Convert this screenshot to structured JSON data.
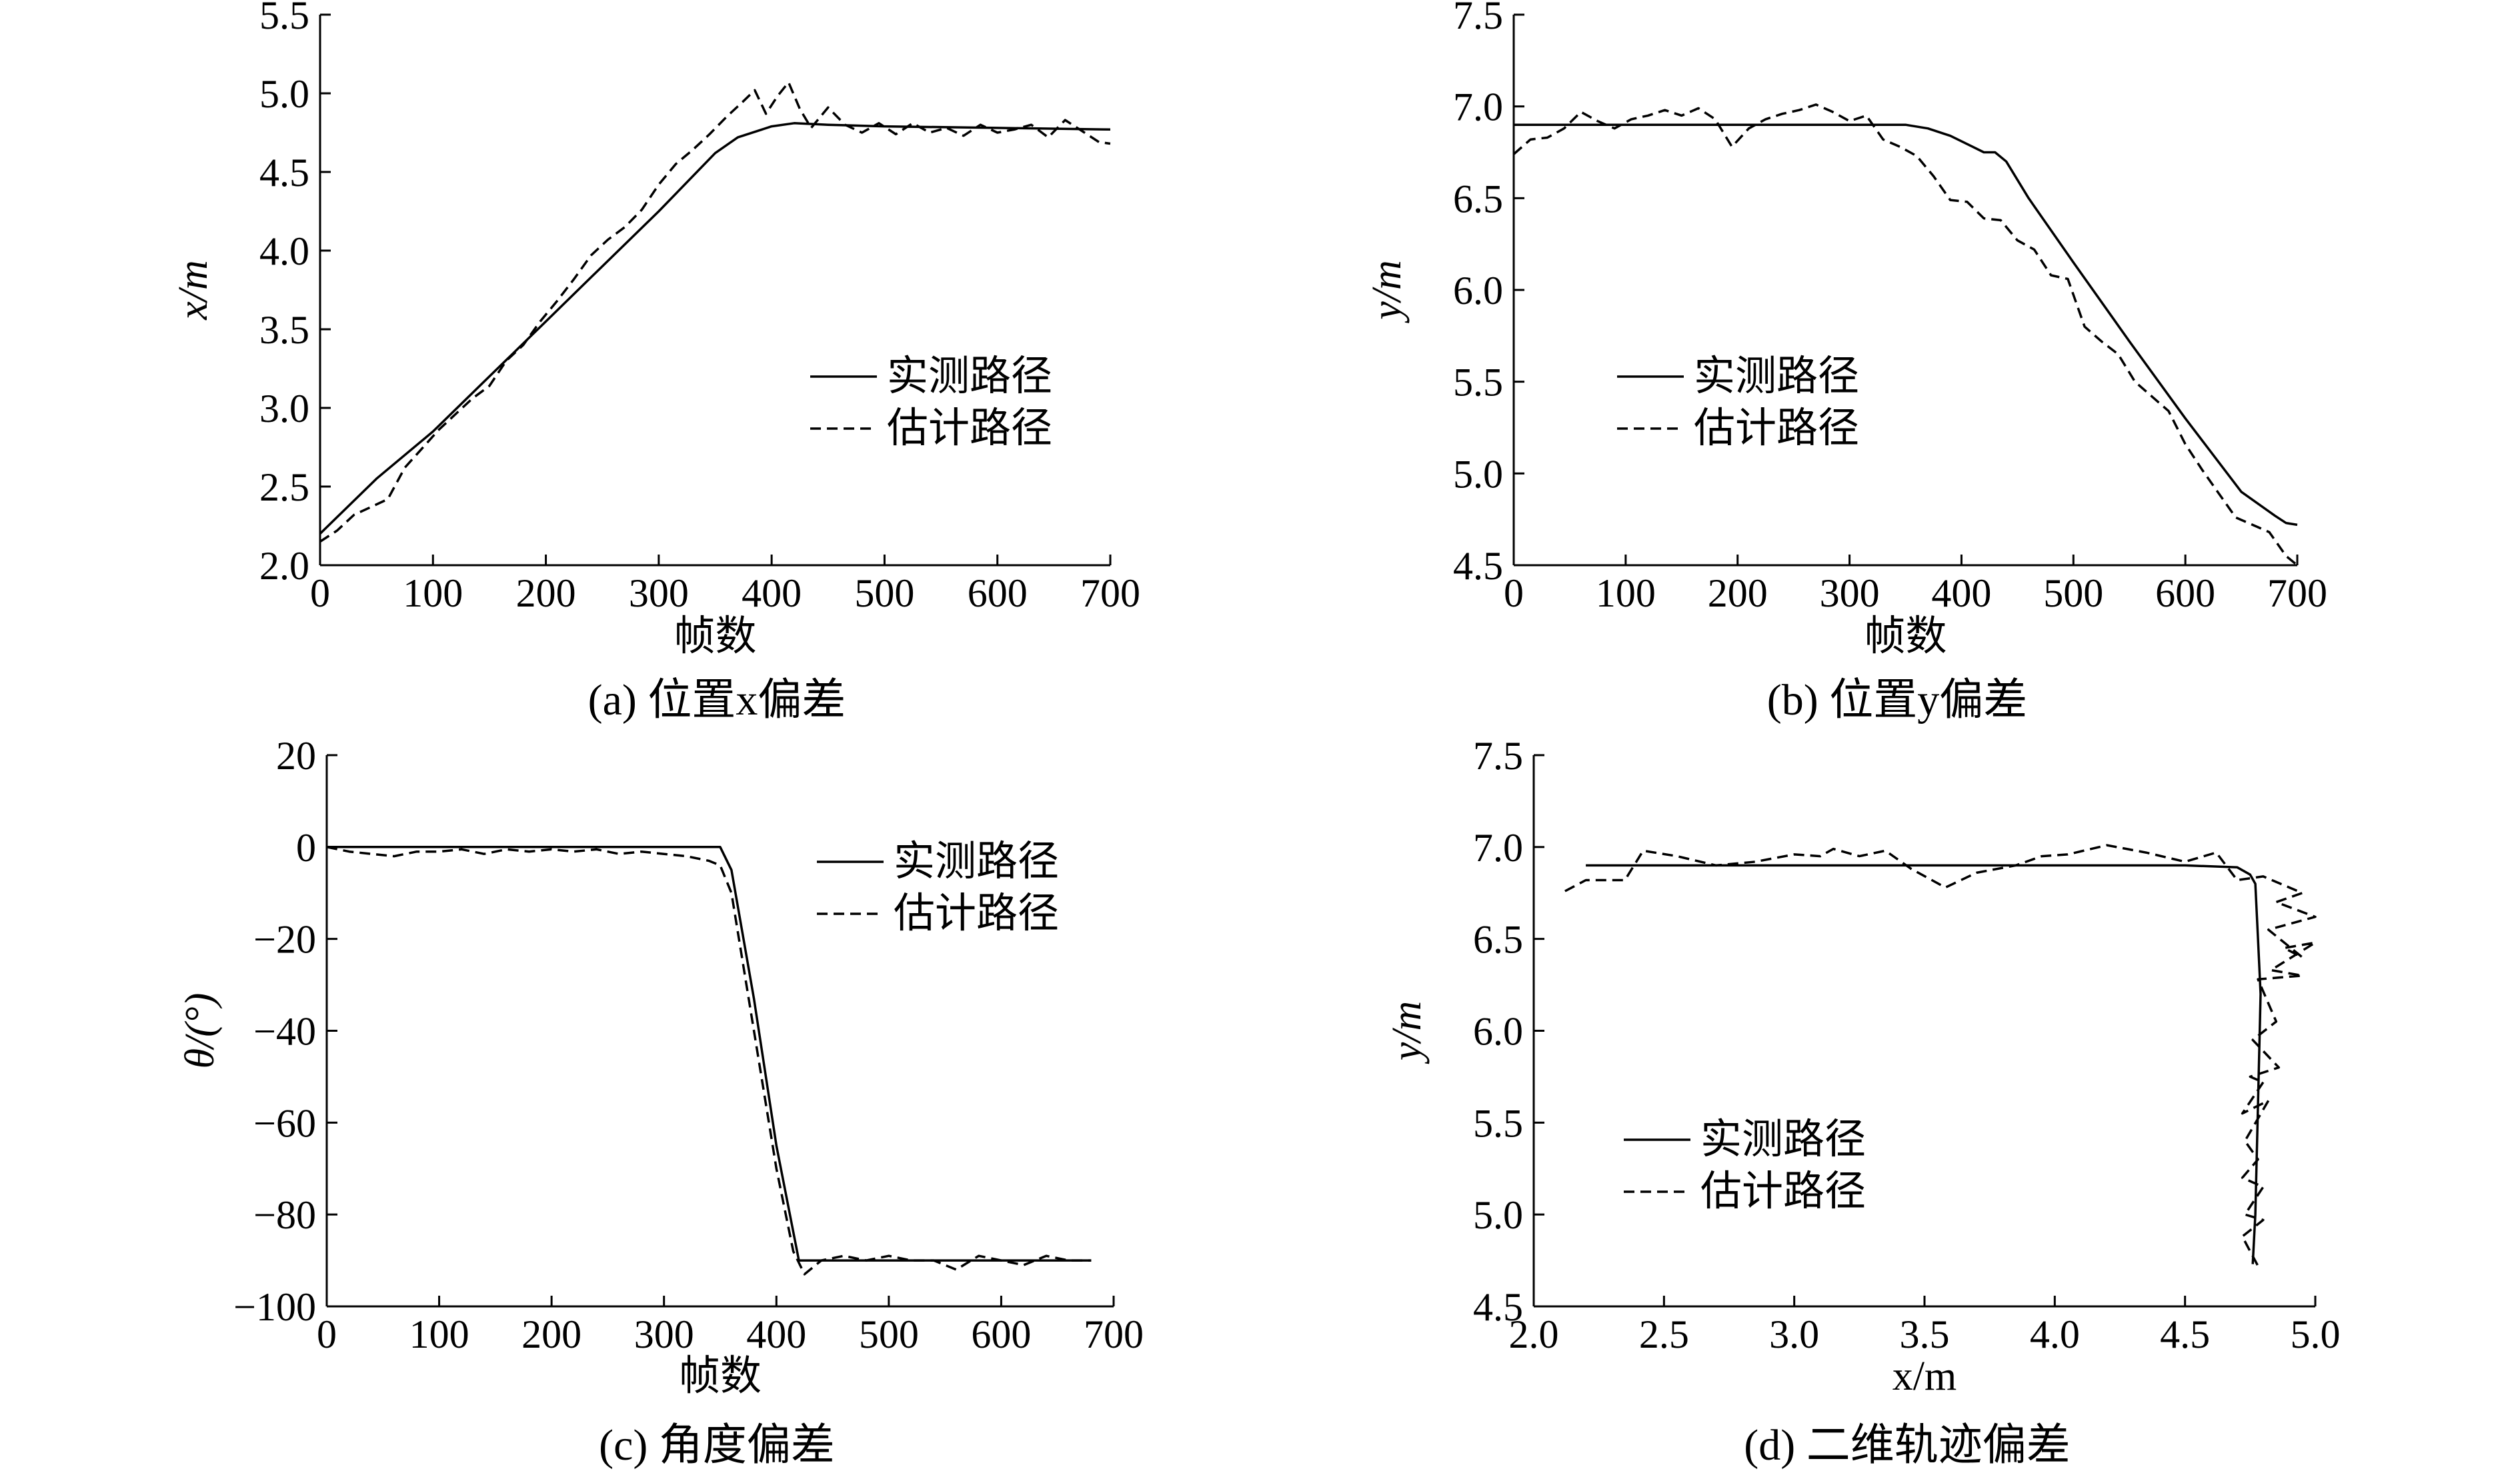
{
  "legend_labels": {
    "measured": "实测路径",
    "estimated": "估计路径"
  },
  "chart_data": [
    {
      "id": "a",
      "type": "line",
      "caption": "(a) 位置x偏差",
      "xlabel": "帧数",
      "ylabel": "x/m",
      "xlim": [
        0,
        700
      ],
      "ylim": [
        2.0,
        5.5
      ],
      "xticks": [
        "0",
        "100",
        "200",
        "300",
        "400",
        "500",
        "600",
        "700"
      ],
      "yticks": [
        "2.0",
        "2.5",
        "3.0",
        "3.5",
        "4.0",
        "4.5",
        "5.0",
        "5.5"
      ],
      "legend_position": "center-right",
      "grid": false,
      "series": [
        {
          "name": "实测路径",
          "style": "solid",
          "x": [
            0,
            50,
            100,
            150,
            200,
            250,
            300,
            350,
            370,
            400,
            420,
            450,
            500,
            600,
            700
          ],
          "y": [
            2.2,
            2.55,
            2.85,
            3.2,
            3.55,
            3.9,
            4.25,
            4.62,
            4.72,
            4.79,
            4.81,
            4.8,
            4.79,
            4.78,
            4.77
          ]
        },
        {
          "name": "估计路径",
          "style": "dashed",
          "x": [
            0,
            15,
            30,
            45,
            60,
            75,
            90,
            105,
            120,
            135,
            150,
            165,
            180,
            195,
            210,
            225,
            240,
            255,
            270,
            285,
            300,
            315,
            330,
            345,
            360,
            375,
            385,
            395,
            405,
            415,
            425,
            435,
            450,
            465,
            480,
            495,
            510,
            525,
            540,
            555,
            570,
            585,
            600,
            615,
            630,
            645,
            660,
            675,
            690,
            700
          ],
          "y": [
            2.15,
            2.22,
            2.32,
            2.37,
            2.42,
            2.62,
            2.74,
            2.86,
            2.96,
            3.06,
            3.14,
            3.3,
            3.4,
            3.55,
            3.68,
            3.82,
            3.97,
            4.07,
            4.15,
            4.26,
            4.42,
            4.55,
            4.64,
            4.74,
            4.85,
            4.95,
            5.02,
            4.87,
            4.98,
            5.07,
            4.9,
            4.78,
            4.91,
            4.8,
            4.75,
            4.81,
            4.74,
            4.81,
            4.75,
            4.78,
            4.73,
            4.8,
            4.75,
            4.77,
            4.8,
            4.72,
            4.83,
            4.76,
            4.69,
            4.68
          ]
        }
      ]
    },
    {
      "id": "b",
      "type": "line",
      "caption": "(b) 位置y偏差",
      "xlabel": "帧数",
      "ylabel": "y/m",
      "xlim": [
        0,
        700
      ],
      "ylim": [
        4.5,
        7.5
      ],
      "xticks": [
        "0",
        "100",
        "200",
        "300",
        "400",
        "500",
        "600",
        "700"
      ],
      "yticks": [
        "4.5",
        "5.0",
        "5.5",
        "6.0",
        "6.5",
        "7.0",
        "7.5"
      ],
      "legend_position": "center-left",
      "grid": false,
      "series": [
        {
          "name": "实测路径",
          "style": "solid",
          "x": [
            0,
            100,
            200,
            300,
            350,
            370,
            390,
            410,
            420,
            430,
            440,
            460,
            500,
            550,
            600,
            650,
            680,
            690,
            700
          ],
          "y": [
            6.9,
            6.9,
            6.9,
            6.9,
            6.9,
            6.88,
            6.84,
            6.78,
            6.75,
            6.75,
            6.7,
            6.5,
            6.15,
            5.72,
            5.3,
            4.9,
            4.77,
            4.73,
            4.72
          ]
        },
        {
          "name": "估计路径",
          "style": "dashed",
          "x": [
            0,
            15,
            30,
            45,
            60,
            75,
            90,
            105,
            120,
            135,
            150,
            165,
            180,
            195,
            210,
            225,
            240,
            255,
            270,
            285,
            300,
            315,
            330,
            345,
            360,
            375,
            390,
            405,
            420,
            435,
            450,
            465,
            480,
            495,
            510,
            525,
            540,
            555,
            570,
            585,
            600,
            615,
            630,
            645,
            660,
            675,
            690,
            700
          ],
          "y": [
            6.74,
            6.82,
            6.83,
            6.88,
            6.97,
            6.92,
            6.88,
            6.93,
            6.95,
            6.98,
            6.95,
            6.99,
            6.93,
            6.78,
            6.88,
            6.93,
            6.96,
            6.98,
            7.01,
            6.97,
            6.92,
            6.95,
            6.82,
            6.78,
            6.73,
            6.62,
            6.49,
            6.48,
            6.39,
            6.38,
            6.27,
            6.22,
            6.08,
            6.06,
            5.8,
            5.72,
            5.65,
            5.5,
            5.42,
            5.34,
            5.16,
            5.02,
            4.89,
            4.76,
            4.72,
            4.68,
            4.55,
            4.5
          ]
        }
      ]
    },
    {
      "id": "c",
      "type": "line",
      "caption": "(c) 角度偏差",
      "xlabel": "帧数",
      "ylabel": "θ/(°)",
      "xlim": [
        0,
        700
      ],
      "ylim": [
        -100,
        20
      ],
      "xticks": [
        "0",
        "100",
        "200",
        "300",
        "400",
        "500",
        "600",
        "700"
      ],
      "yticks": [
        "−100",
        "−80",
        "−60",
        "−40",
        "−20",
        "0",
        "20"
      ],
      "legend_position": "top-right",
      "grid": false,
      "series": [
        {
          "name": "实测路径",
          "style": "solid",
          "x": [
            0,
            100,
            200,
            300,
            350,
            360,
            380,
            400,
            420,
            430,
            500,
            600,
            680
          ],
          "y": [
            0,
            0,
            0,
            0,
            0,
            -5,
            -33,
            -65,
            -90,
            -90,
            -90,
            -90,
            -90
          ]
        },
        {
          "name": "估计路径",
          "style": "dashed",
          "x": [
            0,
            20,
            40,
            60,
            80,
            100,
            120,
            140,
            160,
            180,
            200,
            220,
            240,
            260,
            280,
            300,
            320,
            340,
            350,
            360,
            380,
            400,
            415,
            425,
            440,
            460,
            480,
            500,
            520,
            540,
            560,
            580,
            600,
            620,
            640,
            660,
            680
          ],
          "y": [
            0,
            -1,
            -1.5,
            -2,
            -1,
            -1,
            -0.5,
            -1.5,
            -0.5,
            -1,
            -0.5,
            -1,
            -0.5,
            -1.5,
            -1,
            -1.5,
            -2,
            -3,
            -4,
            -10,
            -40,
            -70,
            -88,
            -93,
            -90,
            -89,
            -90,
            -89,
            -90,
            -90,
            -92,
            -89,
            -90,
            -91,
            -89,
            -90,
            -90
          ]
        }
      ]
    },
    {
      "id": "d",
      "type": "line",
      "caption": "(d) 二维轨迹偏差",
      "xlabel": "x/m",
      "ylabel": "y/m",
      "xlim": [
        2.0,
        5.0
      ],
      "ylim": [
        4.5,
        7.5
      ],
      "xticks": [
        "2.0",
        "2.5",
        "3.0",
        "3.5",
        "4.0",
        "4.5",
        "5.0"
      ],
      "yticks": [
        "4.5",
        "5.0",
        "5.5",
        "6.0",
        "6.5",
        "7.0",
        "7.5"
      ],
      "legend_position": "center-left",
      "grid": false,
      "series": [
        {
          "name": "实测路径",
          "style": "solid",
          "x": [
            2.2,
            2.5,
            3.0,
            3.5,
            4.0,
            4.5,
            4.7,
            4.75,
            4.77,
            4.78,
            4.79,
            4.78,
            4.77,
            4.76
          ],
          "y": [
            6.9,
            6.9,
            6.9,
            6.9,
            6.9,
            6.9,
            6.89,
            6.85,
            6.8,
            6.5,
            6.2,
            5.6,
            5.0,
            4.73
          ]
        },
        {
          "name": "估计路径",
          "style": "dashed",
          "x": [
            2.12,
            2.2,
            2.35,
            2.42,
            2.55,
            2.7,
            2.85,
            3.0,
            3.1,
            3.15,
            3.25,
            3.35,
            3.45,
            3.58,
            3.7,
            3.85,
            3.95,
            4.05,
            4.2,
            4.35,
            4.5,
            4.62,
            4.7,
            4.8,
            4.95,
            4.85,
            5.0,
            4.82,
            4.95,
            4.88,
            5.0,
            4.83,
            4.95,
            4.78,
            4.85,
            4.76,
            4.86,
            4.75,
            4.8,
            4.72,
            4.82,
            4.73,
            4.78,
            4.72,
            4.8,
            4.73,
            4.8,
            4.72,
            4.75,
            4.78
          ],
          "y": [
            6.76,
            6.82,
            6.82,
            6.98,
            6.95,
            6.9,
            6.92,
            6.96,
            6.95,
            6.99,
            6.95,
            6.98,
            6.88,
            6.78,
            6.86,
            6.9,
            6.95,
            6.96,
            7.01,
            6.97,
            6.92,
            6.97,
            6.82,
            6.84,
            6.75,
            6.7,
            6.62,
            6.55,
            6.4,
            6.45,
            6.48,
            6.33,
            6.3,
            6.28,
            6.05,
            5.95,
            5.8,
            5.75,
            5.72,
            5.55,
            5.62,
            5.4,
            5.3,
            5.2,
            5.15,
            5.0,
            4.97,
            4.88,
            4.8,
            4.72
          ]
        }
      ]
    }
  ]
}
